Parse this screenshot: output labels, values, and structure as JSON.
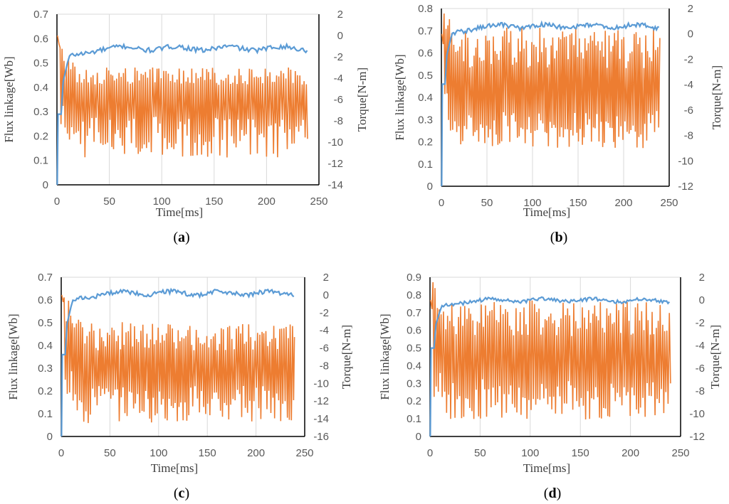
{
  "figure": {
    "series_colors": {
      "flux": "#5b9bd5",
      "torque": "#ed7d31",
      "grid": "#d9d9d9",
      "axis": "#000000",
      "frame": "#d9d9d9"
    }
  },
  "chart_data": [
    {
      "type": "line",
      "panel": "a",
      "label_open": "(",
      "label_letter": "a",
      "label_close": ")",
      "xlabel": "Time[ms]",
      "ylabel": "Flux linkage[Wb]",
      "y2label": "Torque[N-m]",
      "xlim": [
        0,
        250
      ],
      "x_ticks": [
        "0",
        "50",
        "100",
        "150",
        "200",
        "250"
      ],
      "ylim": [
        0,
        0.7
      ],
      "y_ticks": [
        "0",
        "0.1",
        "0.2",
        "0.3",
        "0.4",
        "0.5",
        "0.6",
        "0.7"
      ],
      "y2lim": [
        -14,
        2
      ],
      "y2_ticks": [
        "-14",
        "-12",
        "-10",
        "-8",
        "-6",
        "-4",
        "-2",
        "0",
        "2"
      ],
      "series": [
        {
          "name": "Flux linkage",
          "axis": "left",
          "color": "#5b9bd5",
          "x_end": 240,
          "steady_value": 0.56,
          "startup_plateau": 0.29
        },
        {
          "name": "Torque",
          "axis": "right",
          "color": "#ed7d31",
          "x_end": 240,
          "initial_value": 0,
          "ripple_mean": -5.5,
          "ripple_max": -3.0,
          "ripple_min": -11.5
        }
      ]
    },
    {
      "type": "line",
      "panel": "b",
      "label_open": "(",
      "label_letter": "b",
      "label_close": ")",
      "xlabel": "Time[ms]",
      "ylabel": "Flux linkage[Wb]",
      "y2label": "Torque[N-m]",
      "xlim": [
        0,
        250
      ],
      "x_ticks": [
        "0",
        "50",
        "100",
        "150",
        "200",
        "250"
      ],
      "ylim": [
        0,
        0.8
      ],
      "y_ticks": [
        "0",
        "0.1",
        "0.2",
        "0.3",
        "0.4",
        "0.5",
        "0.6",
        "0.7",
        "0.8"
      ],
      "y2lim": [
        -12,
        2
      ],
      "y2_ticks": [
        "-12",
        "-10",
        "-8",
        "-6",
        "-4",
        "-2",
        "0",
        "2"
      ],
      "series": [
        {
          "name": "Flux linkage",
          "axis": "left",
          "color": "#5b9bd5",
          "x_end": 240,
          "steady_value": 0.72,
          "startup_plateau": 0.46
        },
        {
          "name": "Torque",
          "axis": "right",
          "color": "#ed7d31",
          "x_end": 240,
          "initial_value": 0,
          "ripple_mean": -4.5,
          "ripple_max": 0.5,
          "ripple_min": -9.0
        }
      ]
    },
    {
      "type": "line",
      "panel": "c",
      "label_open": "(",
      "label_letter": "c",
      "label_close": ")",
      "xlabel": "Time[ms]",
      "ylabel": "Flux linkage[Wb]",
      "y2label": "Torque[N-m]",
      "xlim": [
        0,
        250
      ],
      "x_ticks": [
        "0",
        "50",
        "100",
        "150",
        "200",
        "250"
      ],
      "ylim": [
        0,
        0.7
      ],
      "y_ticks": [
        "0",
        "0.1",
        "0.2",
        "0.3",
        "0.4",
        "0.5",
        "0.6",
        "0.7"
      ],
      "y2lim": [
        -16,
        2
      ],
      "y2_ticks": [
        "-16",
        "-14",
        "-12",
        "-10",
        "-8",
        "-6",
        "-4",
        "-2",
        "0",
        "2"
      ],
      "series": [
        {
          "name": "Flux linkage",
          "axis": "left",
          "color": "#5b9bd5",
          "x_end": 240,
          "steady_value": 0.63,
          "startup_plateau": 0.36
        },
        {
          "name": "Torque",
          "axis": "right",
          "color": "#ed7d31",
          "x_end": 240,
          "initial_value": 0,
          "ripple_mean": -8.0,
          "ripple_max": -3.0,
          "ripple_min": -14.5
        }
      ]
    },
    {
      "type": "line",
      "panel": "d",
      "label_open": "(",
      "label_letter": "d",
      "label_close": ")",
      "xlabel": "Time[ms]",
      "ylabel": "Flux linkage[Wb]",
      "y2label": "Torque[N-m]",
      "xlim": [
        0,
        250
      ],
      "x_ticks": [
        "0",
        "50",
        "100",
        "150",
        "200",
        "250"
      ],
      "ylim": [
        0,
        0.9
      ],
      "y_ticks": [
        "0",
        "0.1",
        "0.2",
        "0.3",
        "0.4",
        "0.5",
        "0.6",
        "0.7",
        "0.8",
        "0.9"
      ],
      "y2lim": [
        -12,
        2
      ],
      "y2_ticks": [
        "-12",
        "-10",
        "-8",
        "-6",
        "-4",
        "-2",
        "0",
        "2"
      ],
      "series": [
        {
          "name": "Flux linkage",
          "axis": "left",
          "color": "#5b9bd5",
          "x_end": 240,
          "steady_value": 0.77,
          "startup_plateau": 0.5
        },
        {
          "name": "Torque",
          "axis": "right",
          "color": "#ed7d31",
          "x_end": 240,
          "initial_value": 0,
          "ripple_mean": -5.0,
          "ripple_max": 0,
          "ripple_min": -10.5
        }
      ]
    }
  ]
}
